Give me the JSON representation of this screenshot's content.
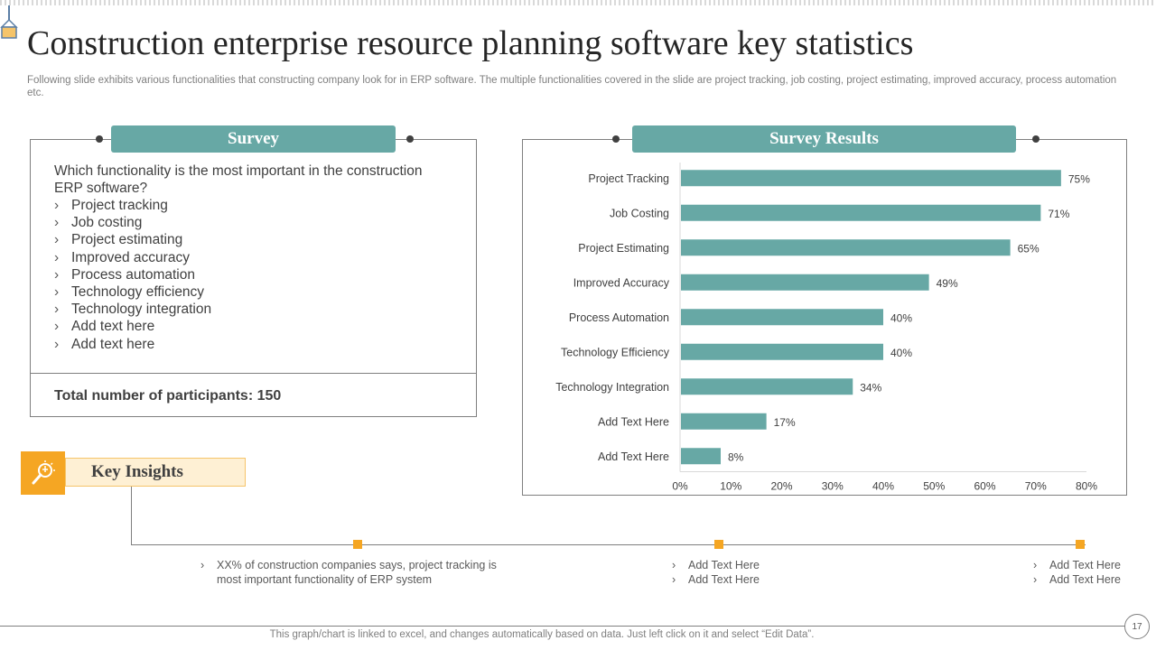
{
  "slide": {
    "title": "Construction enterprise resource planning software key statistics",
    "subtitle": "Following slide exhibits various functionalities that constructing company look for in ERP software. The multiple functionalities covered in the slide are project tracking, job costing, project estimating, improved accuracy, process automation etc.",
    "page_number": "17",
    "footer_note": "This graph/chart is linked to excel, and changes automatically based on data. Just left click on it and select “Edit Data”."
  },
  "survey": {
    "header": "Survey",
    "question": "Which functionality  is the most important in the construction ERP software?",
    "bullet_glyph": "›",
    "options": [
      "Project tracking",
      "Job costing",
      "Project estimating",
      "Improved accuracy",
      "Process automation",
      "Technology efficiency",
      "Technology integration",
      "Add text here",
      "Add text here"
    ],
    "participants": "Total number of participants: 150"
  },
  "results": {
    "header": "Survey Results"
  },
  "key_insights": {
    "label": "Key Insights",
    "icon": "lightbulb-magnifier-icon",
    "columns": [
      [
        "XX%  of construction companies says, project tracking is most important functionality of ERP system"
      ],
      [
        "Add Text Here",
        "Add Text Here"
      ],
      [
        "Add Text Here",
        "Add Text Here"
      ]
    ]
  },
  "colors": {
    "teal": "#67a8a5",
    "orange": "#f5a623",
    "insight_bg": "#fef0d4"
  },
  "chart_data": {
    "type": "bar",
    "orientation": "horizontal",
    "categories": [
      "Project Tracking",
      "Job Costing",
      "Project Estimating",
      "Improved Accuracy",
      "Process Automation",
      "Technology Efficiency",
      "Technology Integration",
      "Add Text Here",
      "Add Text Here"
    ],
    "values": [
      75,
      71,
      65,
      49,
      40,
      40,
      34,
      17,
      8
    ],
    "value_labels": [
      "75%",
      "71%",
      "65%",
      "49%",
      "40%",
      "40%",
      "34%",
      "17%",
      "8%"
    ],
    "xlim": [
      0,
      80
    ],
    "xticks": [
      "0%",
      "10%",
      "20%",
      "30%",
      "40%",
      "50%",
      "60%",
      "70%",
      "80%"
    ],
    "color": "#67a8a5",
    "grid": false,
    "legend": "none"
  }
}
